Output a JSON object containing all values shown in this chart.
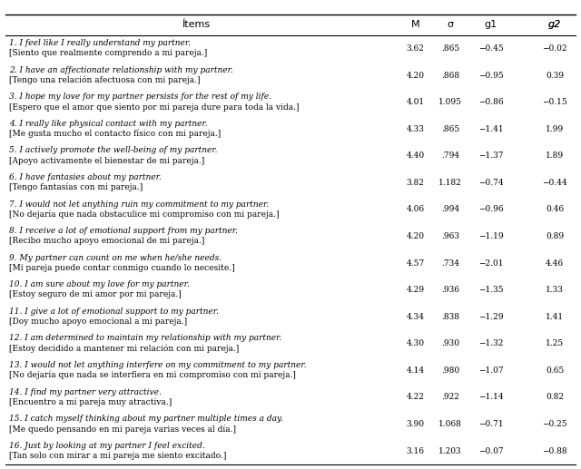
{
  "title": "Ítems",
  "columns": [
    "Ítems",
    "M",
    "σ",
    "g1",
    "g2"
  ],
  "rows": [
    {
      "item_num": "1.",
      "english": "I feel like I really understand my partner.",
      "spanish": "[Siento que realmente comprendo a mi pareja.]",
      "M": "3.62",
      "sigma": ".865",
      "g1": "−0.45",
      "g2": "−0.02"
    },
    {
      "item_num": "2.",
      "english": "I have an affectionate relationship with my partner.",
      "spanish": "[Tengo una relación afectuosa con mi pareja.]",
      "M": "4.20",
      "sigma": ".868",
      "g1": "−0.95",
      "g2": "0.39"
    },
    {
      "item_num": "3.",
      "english": "I hope my love for my partner persists for the rest of my life.",
      "spanish": "[Espero que el amor que siento por mi pareja dure para toda la vida.]",
      "M": "4.01",
      "sigma": "1.095",
      "g1": "−0.86",
      "g2": "−0.15"
    },
    {
      "item_num": "4.",
      "english": "I really like physical contact with my partner.",
      "spanish": "[Me gusta mucho el contacto físico con mi pareja.]",
      "M": "4.33",
      "sigma": ".865",
      "g1": "−1.41",
      "g2": "1.99"
    },
    {
      "item_num": "5.",
      "english": "I actively promote the well-being of my partner.",
      "spanish": "[Apoyo activamente el bienestar de mi pareja.]",
      "M": "4.40",
      "sigma": ".794",
      "g1": "−1.37",
      "g2": "1.89"
    },
    {
      "item_num": "6.",
      "english": "I have fantasies about my partner.",
      "spanish": "[Tengo fantasías con mi pareja.]",
      "M": "3.82",
      "sigma": "1.182",
      "g1": "−0.74",
      "g2": "−0.44"
    },
    {
      "item_num": "7.",
      "english": "I would not let anything ruin my commitment to my partner.",
      "spanish": "[No dejaría que nada obstaculice mi compromiso con mi pareja.]",
      "M": "4.06",
      "sigma": ".994",
      "g1": "−0.96",
      "g2": "0.46"
    },
    {
      "item_num": "8.",
      "english": "I receive a lot of emotional support from my partner.",
      "spanish": "[Recibo mucho apoyo emocional de mi pareja.]",
      "M": "4.20",
      "sigma": ".963",
      "g1": "−1.19",
      "g2": "0.89"
    },
    {
      "item_num": "9.",
      "english": "My partner can count on me when he/she needs.",
      "spanish": "[Mi pareja puede contar conmigo cuando lo necesite.]",
      "M": "4.57",
      "sigma": ".734",
      "g1": "−2.01",
      "g2": "4.46"
    },
    {
      "item_num": "10.",
      "english": "I am sure about my love for my partner.",
      "spanish": "[Estoy seguro de mi amor por mi pareja.]",
      "M": "4.29",
      "sigma": ".936",
      "g1": "−1.35",
      "g2": "1.33"
    },
    {
      "item_num": "11.",
      "english": "I give a lot of emotional support to my partner.",
      "spanish": "[Doy mucho apoyo emocional a mi pareja.]",
      "M": "4.34",
      "sigma": ".838",
      "g1": "−1.29",
      "g2": "1.41"
    },
    {
      "item_num": "12.",
      "english": "I am determined to maintain my relationship with my partner.",
      "spanish": "[Estoy decidido a mantener mi relación con mi pareja.]",
      "M": "4.30",
      "sigma": ".930",
      "g1": "−1.32",
      "g2": "1.25"
    },
    {
      "item_num": "13.",
      "english": "I would not let anything interfere on my commitment to my partner.",
      "spanish": "[No dejaría que nada se interfiera en mi compromiso con mi pareja.]",
      "M": "4.14",
      "sigma": ".980",
      "g1": "−1.07",
      "g2": "0.65"
    },
    {
      "item_num": "14.",
      "english": "I find my partner very attractive.",
      "spanish": "[Encuentro a mi pareja muy atractiva.]",
      "M": "4.22",
      "sigma": ".922",
      "g1": "−1.14",
      "g2": "0.82"
    },
    {
      "item_num": "15.",
      "english": "I catch myself thinking about my partner multiple times a day.",
      "spanish": "[Me quedo pensando en mi pareja varias veces al día.]",
      "M": "3.90",
      "sigma": "1.068",
      "g1": "−0.71",
      "g2": "−0.25"
    },
    {
      "item_num": "16.",
      "english": "Just by looking at my partner I feel excited.",
      "spanish": "[Tan solo con mirar a mi pareja me siento excitado.]",
      "M": "3.16",
      "sigma": "1.203",
      "g1": "−0.07",
      "g2": "−0.88"
    }
  ],
  "bg_color": "#ffffff",
  "text_color": "#000000",
  "header_underline_color": "#000000"
}
